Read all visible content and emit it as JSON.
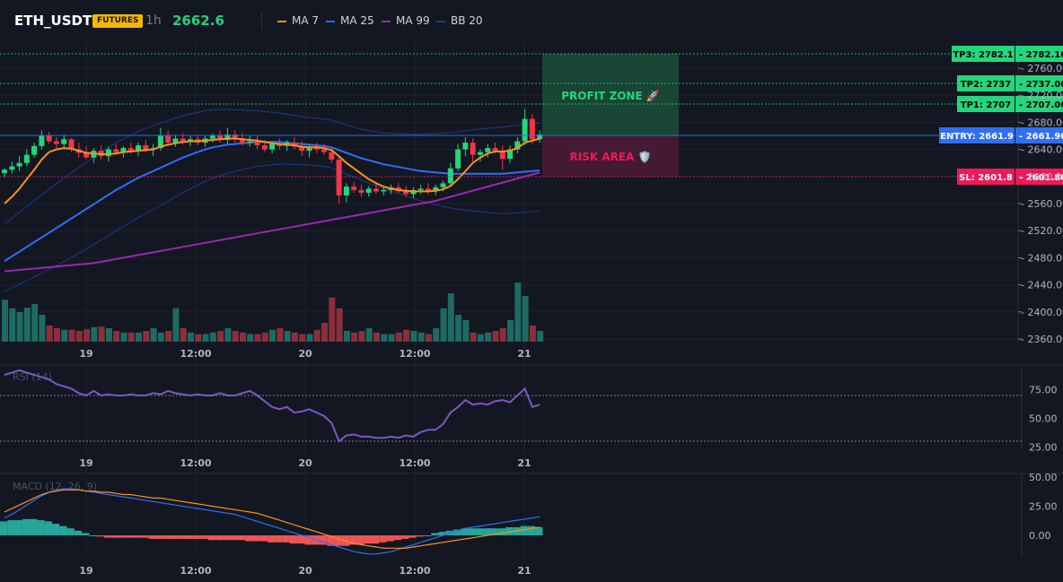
{
  "header": {
    "symbol": "ETH_USDT",
    "badge": "FUTURES",
    "timeframe": "1h",
    "last_price": "2662.6"
  },
  "legend": [
    {
      "label": "MA 7",
      "color": "#f7931a"
    },
    {
      "label": "MA 25",
      "color": "#2f6ef7"
    },
    {
      "label": "MA 99",
      "color": "#9c27b0"
    },
    {
      "label": "BB 20",
      "color": "#1e3a8a"
    }
  ],
  "colors": {
    "up": "#26a69a",
    "up_bright": "#23d67b",
    "down": "#f23645",
    "tp": "#23d67b",
    "entry": "#2f6ef7",
    "sl": "#f0185a"
  },
  "price_axis": {
    "ticks": [
      "2760.00",
      "2720.00",
      "2680.00",
      "2640.00",
      "2600.00",
      "2560.00",
      "2520.00",
      "2480.00",
      "2440.00",
      "2400.00",
      "2360.00"
    ],
    "ylim": [
      2360,
      2782.1
    ]
  },
  "time_axis": {
    "ticks": [
      "19",
      "12:00",
      "20",
      "12:00",
      "21"
    ]
  },
  "levels": {
    "tp3": {
      "tag": "TP3: 2782.1",
      "value_label": "2782.10",
      "value": 2782.1
    },
    "tp2": {
      "tag": "TP2: 2737",
      "value_label": "2737.00",
      "value": 2737
    },
    "tp1": {
      "tag": "TP1: 2707",
      "value_label": "2707.00",
      "value": 2707
    },
    "entry": {
      "tag": "ENTRY: 2661.9",
      "value_label": "2661.90",
      "value": 2661.9
    },
    "sl": {
      "tag": "SL: 2601.8",
      "value_label": "2601.80",
      "value": 2601.8
    }
  },
  "zones": {
    "profit": "PROFIT ZONE 🚀",
    "risk": "RISK AREA 🛡️"
  },
  "rsi": {
    "label": "RSI (14)",
    "ticks": [
      "75.00",
      "50.00",
      "25.00"
    ],
    "upper": 70,
    "lower": 30
  },
  "macd": {
    "label": "MACD (12, 26, 9)",
    "ticks": [
      "50.00",
      "25.00",
      "0.00"
    ]
  },
  "chart_data": {
    "type": "candlestick",
    "candles_ohlc": [
      [
        2605,
        2612,
        2598,
        2610
      ],
      [
        2610,
        2622,
        2604,
        2615
      ],
      [
        2615,
        2630,
        2608,
        2620
      ],
      [
        2620,
        2640,
        2615,
        2632
      ],
      [
        2632,
        2650,
        2628,
        2645
      ],
      [
        2645,
        2668,
        2640,
        2660
      ],
      [
        2660,
        2666,
        2648,
        2652
      ],
      [
        2652,
        2658,
        2640,
        2648
      ],
      [
        2648,
        2662,
        2642,
        2655
      ],
      [
        2655,
        2657,
        2636,
        2640
      ],
      [
        2640,
        2650,
        2628,
        2635
      ],
      [
        2635,
        2645,
        2625,
        2628
      ],
      [
        2628,
        2642,
        2620,
        2638
      ],
      [
        2638,
        2646,
        2625,
        2630
      ],
      [
        2630,
        2644,
        2622,
        2640
      ],
      [
        2640,
        2648,
        2632,
        2636
      ],
      [
        2636,
        2645,
        2628,
        2642
      ],
      [
        2642,
        2650,
        2634,
        2638
      ],
      [
        2638,
        2650,
        2630,
        2646
      ],
      [
        2646,
        2654,
        2636,
        2640
      ],
      [
        2640,
        2648,
        2630,
        2642
      ],
      [
        2642,
        2672,
        2638,
        2660
      ],
      [
        2660,
        2668,
        2645,
        2650
      ],
      [
        2650,
        2660,
        2644,
        2656
      ],
      [
        2656,
        2664,
        2648,
        2652
      ],
      [
        2652,
        2660,
        2645,
        2655
      ],
      [
        2655,
        2662,
        2646,
        2650
      ],
      [
        2650,
        2660,
        2644,
        2656
      ],
      [
        2656,
        2664,
        2650,
        2660
      ],
      [
        2660,
        2668,
        2650,
        2654
      ],
      [
        2654,
        2672,
        2648,
        2662
      ],
      [
        2662,
        2668,
        2650,
        2656
      ],
      [
        2656,
        2664,
        2646,
        2650
      ],
      [
        2650,
        2660,
        2644,
        2652
      ],
      [
        2652,
        2660,
        2640,
        2646
      ],
      [
        2646,
        2654,
        2636,
        2640
      ],
      [
        2640,
        2652,
        2634,
        2648
      ],
      [
        2648,
        2656,
        2640,
        2645
      ],
      [
        2645,
        2654,
        2638,
        2650
      ],
      [
        2650,
        2658,
        2640,
        2644
      ],
      [
        2644,
        2652,
        2630,
        2638
      ],
      [
        2638,
        2646,
        2628,
        2642
      ],
      [
        2642,
        2650,
        2634,
        2640
      ],
      [
        2640,
        2648,
        2632,
        2636
      ],
      [
        2636,
        2642,
        2620,
        2625
      ],
      [
        2625,
        2630,
        2560,
        2572
      ],
      [
        2572,
        2590,
        2562,
        2585
      ],
      [
        2585,
        2592,
        2576,
        2580
      ],
      [
        2580,
        2588,
        2570,
        2576
      ],
      [
        2576,
        2586,
        2570,
        2582
      ],
      [
        2582,
        2590,
        2574,
        2578
      ],
      [
        2578,
        2586,
        2572,
        2580
      ],
      [
        2580,
        2588,
        2574,
        2584
      ],
      [
        2584,
        2590,
        2576,
        2578
      ],
      [
        2578,
        2586,
        2570,
        2574
      ],
      [
        2574,
        2584,
        2568,
        2580
      ],
      [
        2580,
        2588,
        2574,
        2582
      ],
      [
        2582,
        2590,
        2574,
        2578
      ],
      [
        2578,
        2588,
        2572,
        2584
      ],
      [
        2584,
        2594,
        2578,
        2590
      ],
      [
        2590,
        2620,
        2586,
        2612
      ],
      [
        2612,
        2648,
        2608,
        2640
      ],
      [
        2640,
        2658,
        2630,
        2650
      ],
      [
        2650,
        2656,
        2622,
        2632
      ],
      [
        2632,
        2640,
        2622,
        2636
      ],
      [
        2636,
        2648,
        2628,
        2642
      ],
      [
        2642,
        2650,
        2634,
        2638
      ],
      [
        2638,
        2646,
        2610,
        2626
      ],
      [
        2626,
        2646,
        2620,
        2640
      ],
      [
        2640,
        2658,
        2634,
        2652
      ],
      [
        2652,
        2700,
        2646,
        2685
      ],
      [
        2685,
        2692,
        2648,
        2655
      ],
      [
        2655,
        2668,
        2650,
        2662
      ]
    ],
    "volume_bars": [
      78,
      62,
      55,
      63,
      70,
      50,
      30,
      25,
      22,
      22,
      20,
      23,
      27,
      28,
      25,
      20,
      17,
      17,
      17,
      20,
      25,
      17,
      20,
      62,
      25,
      17,
      14,
      14,
      17,
      20,
      25,
      20,
      17,
      14,
      14,
      17,
      22,
      25,
      20,
      17,
      14,
      14,
      22,
      35,
      82,
      62,
      20,
      17,
      20,
      25,
      17,
      14,
      14,
      17,
      22,
      20,
      17,
      14,
      25,
      62,
      90,
      50,
      40,
      17,
      14,
      17,
      20,
      25,
      40,
      110,
      85,
      30,
      20
    ],
    "volume_colors": "r for down, g for up (each bar matches its candle)",
    "series": [
      {
        "name": "MA 7",
        "values": [
          2560,
          2570,
          2582,
          2596,
          2610,
          2625,
          2636,
          2640,
          2642,
          2641,
          2638,
          2635,
          2634,
          2633,
          2633,
          2634,
          2636,
          2637,
          2638,
          2639,
          2640,
          2644,
          2647,
          2649,
          2651,
          2652,
          2652,
          2653,
          2654,
          2655,
          2656,
          2656,
          2655,
          2654,
          2653,
          2651,
          2649,
          2648,
          2647,
          2646,
          2644,
          2643,
          2643,
          2642,
          2639,
          2630,
          2620,
          2612,
          2604,
          2596,
          2590,
          2585,
          2582,
          2580,
          2579,
          2578,
          2578,
          2578,
          2579,
          2581,
          2586,
          2596,
          2608,
          2620,
          2628,
          2634,
          2637,
          2637,
          2638,
          2642,
          2650,
          2653,
          2656
        ]
      },
      {
        "name": "MA 25",
        "values": [
          2475,
          2482,
          2489,
          2496,
          2503,
          2510,
          2517,
          2524,
          2531,
          2538,
          2545,
          2552,
          2559,
          2566,
          2573,
          2580,
          2586,
          2592,
          2598,
          2603,
          2608,
          2613,
          2618,
          2623,
          2628,
          2632,
          2636,
          2640,
          2643,
          2645,
          2647,
          2648,
          2649,
          2650,
          2651,
          2651,
          2651,
          2651,
          2650,
          2649,
          2648,
          2647,
          2646,
          2645,
          2643,
          2639,
          2635,
          2631,
          2627,
          2624,
          2621,
          2618,
          2616,
          2614,
          2612,
          2610,
          2608,
          2607,
          2606,
          2605,
          2604,
          2604,
          2604,
          2604,
          2604,
          2604,
          2604,
          2604,
          2605,
          2606,
          2607,
          2608,
          2609
        ]
      },
      {
        "name": "MA 99",
        "values": [
          2460,
          2461,
          2462,
          2463,
          2464,
          2465,
          2466,
          2467,
          2468,
          2469,
          2470,
          2471,
          2472,
          2474,
          2476,
          2478,
          2480,
          2482,
          2484,
          2486,
          2488,
          2490,
          2492,
          2494,
          2496,
          2498,
          2500,
          2502,
          2504,
          2506,
          2508,
          2510,
          2512,
          2514,
          2516,
          2518,
          2520,
          2522,
          2524,
          2526,
          2528,
          2530,
          2532,
          2534,
          2536,
          2538,
          2540,
          2542,
          2544,
          2546,
          2548,
          2550,
          2552,
          2554,
          2556,
          2558,
          2560,
          2562,
          2564,
          2567,
          2570,
          2573,
          2576,
          2579,
          2582,
          2585,
          2588,
          2591,
          2594,
          2597,
          2600,
          2603,
          2606
        ]
      }
    ],
    "rsi_values": [
      88,
      90,
      92,
      90,
      88,
      86,
      84,
      80,
      78,
      76,
      72,
      70,
      74,
      70,
      71,
      70,
      70,
      71,
      70,
      70,
      72,
      71,
      74,
      72,
      71,
      70,
      71,
      70,
      70,
      72,
      70,
      70,
      72,
      74,
      70,
      65,
      60,
      58,
      60,
      55,
      56,
      58,
      55,
      52,
      46,
      30,
      35,
      36,
      34,
      34,
      33,
      33,
      34,
      33,
      35,
      34,
      38,
      40,
      40,
      45,
      55,
      60,
      66,
      62,
      63,
      62,
      65,
      66,
      64,
      70,
      76,
      60,
      62
    ],
    "macd_line": [
      15,
      18,
      22,
      26,
      30,
      34,
      37,
      39,
      40,
      40,
      39,
      38,
      37,
      36,
      35,
      34,
      33,
      32,
      31,
      30,
      29,
      28,
      27,
      26,
      25,
      24,
      23,
      22,
      21,
      20,
      19,
      18,
      16,
      14,
      12,
      10,
      8,
      6,
      4,
      2,
      0,
      -2,
      -4,
      -6,
      -8,
      -10,
      -12,
      -14,
      -15,
      -16,
      -16,
      -15,
      -14,
      -12,
      -10,
      -8,
      -6,
      -4,
      -2,
      0,
      2,
      4,
      6,
      7,
      8,
      9,
      10,
      11,
      12,
      13,
      14,
      15,
      16
    ],
    "signal_line": [
      20,
      23,
      26,
      29,
      32,
      35,
      37,
      38,
      39,
      39,
      39,
      38,
      38,
      37,
      37,
      36,
      35,
      35,
      34,
      33,
      32,
      32,
      31,
      30,
      29,
      28,
      27,
      26,
      25,
      24,
      23,
      22,
      21,
      20,
      19,
      17,
      15,
      13,
      11,
      9,
      7,
      5,
      3,
      1,
      -1,
      -3,
      -5,
      -7,
      -8,
      -9,
      -10,
      -11,
      -11,
      -11,
      -11,
      -10,
      -9,
      -8,
      -7,
      -6,
      -5,
      -4,
      -3,
      -2,
      -1,
      0,
      1,
      2,
      3,
      4,
      5,
      6,
      7
    ],
    "macd_hist": [
      12,
      13,
      13,
      14,
      14,
      13,
      12,
      10,
      8,
      6,
      4,
      2,
      0,
      -1,
      -2,
      -2,
      -2,
      -2,
      -2,
      -2,
      -3,
      -3,
      -3,
      -3,
      -3,
      -3,
      -3,
      -3,
      -4,
      -4,
      -4,
      -4,
      -4,
      -5,
      -5,
      -5,
      -6,
      -6,
      -6,
      -7,
      -7,
      -8,
      -8,
      -8,
      -9,
      -9,
      -9,
      -8,
      -8,
      -7,
      -7,
      -6,
      -5,
      -4,
      -3,
      -2,
      -1,
      0,
      2,
      3,
      4,
      5,
      6,
      6,
      6,
      6,
      6,
      6,
      7,
      7,
      8,
      8,
      7
    ]
  }
}
